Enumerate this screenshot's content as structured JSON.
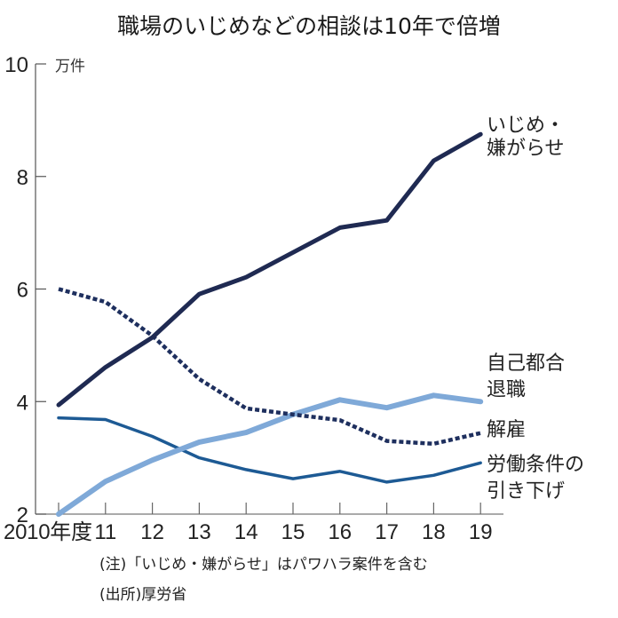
{
  "chart_data": {
    "type": "line",
    "title": "職場のいじめなどの相談は10年で倍増",
    "ylabel": "万件",
    "xlabel": "",
    "ylim": [
      2,
      10
    ],
    "yticks": [
      2,
      4,
      6,
      8,
      10
    ],
    "ytick_labels": [
      "2",
      "4",
      "6",
      "8",
      "10"
    ],
    "categories": [
      "2010年度",
      "11",
      "12",
      "13",
      "14",
      "15",
      "16",
      "17",
      "18",
      "19"
    ],
    "grid": false,
    "legend": "inline-right",
    "series": [
      {
        "name": "いじめ・嫌がらせ",
        "label_lines": [
          "いじめ・",
          "嫌がらせ"
        ],
        "color": "#1f2a52",
        "style": "solid",
        "values": [
          3.94,
          4.61,
          5.14,
          5.91,
          6.21,
          6.65,
          7.09,
          7.22,
          8.28,
          8.75
        ]
      },
      {
        "name": "自己都合退職",
        "label_lines": [
          "自己都合",
          "退職"
        ],
        "color": "#7fa9d8",
        "style": "solid-thick",
        "values": [
          2.0,
          2.58,
          2.96,
          3.28,
          3.45,
          3.77,
          4.03,
          3.89,
          4.11,
          4.0
        ]
      },
      {
        "name": "解雇",
        "label_lines": [
          "解雇"
        ],
        "color": "#1e2f5e",
        "style": "dotted",
        "values": [
          6.0,
          5.77,
          5.17,
          4.4,
          3.88,
          3.77,
          3.67,
          3.3,
          3.25,
          3.44
        ]
      },
      {
        "name": "労働条件の引き下げ",
        "label_lines": [
          "労働条件の",
          "引き下げ"
        ],
        "color": "#1d5a94",
        "style": "solid-thin",
        "values": [
          3.71,
          3.68,
          3.38,
          3.0,
          2.79,
          2.63,
          2.76,
          2.57,
          2.69,
          2.91
        ]
      }
    ],
    "notes": [
      "(注)「いじめ・嫌がらせ」はパワハラ案件を含む",
      "(出所)厚労省"
    ]
  }
}
